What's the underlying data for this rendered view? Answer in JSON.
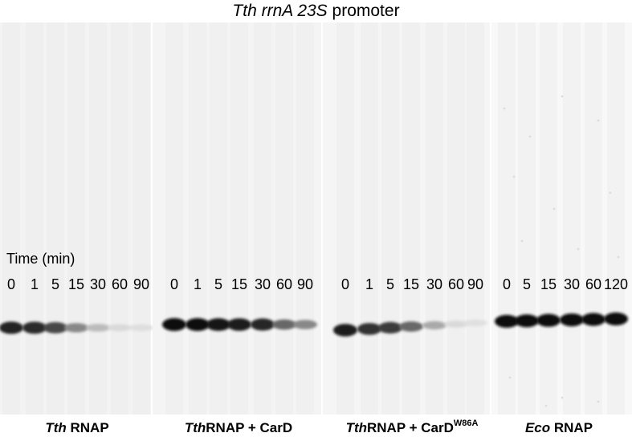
{
  "title": {
    "italic": "Tth rrnA 23S",
    "rest": " promoter"
  },
  "time_label": "Time (min)",
  "panels": [
    {
      "label_italic": "Tth",
      "label_rest": " RNAP",
      "label_sup": "",
      "lanes": [
        "0",
        "1",
        "5",
        "15",
        "30",
        "60",
        "90"
      ],
      "band_intensity": [
        0.92,
        0.88,
        0.75,
        0.45,
        0.22,
        0.08,
        0.06
      ]
    },
    {
      "label_italic": "Tth",
      "label_rest": "RNAP + CarD",
      "label_sup": "",
      "lanes": [
        "0",
        "1",
        "5",
        "15",
        "30",
        "60",
        "90"
      ],
      "band_intensity": [
        1.0,
        1.0,
        0.97,
        0.95,
        0.9,
        0.6,
        0.45
      ]
    },
    {
      "label_italic": "Tth",
      "label_rest": "RNAP + CarD",
      "label_sup": "W86A",
      "lanes": [
        "0",
        "1",
        "5",
        "15",
        "30",
        "60",
        "90"
      ],
      "band_intensity": [
        0.95,
        0.85,
        0.8,
        0.6,
        0.3,
        0.08,
        0.05
      ]
    },
    {
      "label_italic": "Eco",
      "label_rest": " RNAP",
      "label_sup": "",
      "lanes": [
        "0",
        "5",
        "15",
        "30",
        "60",
        "120"
      ],
      "band_intensity": [
        1.0,
        1.0,
        1.0,
        1.0,
        1.0,
        1.0
      ]
    }
  ]
}
